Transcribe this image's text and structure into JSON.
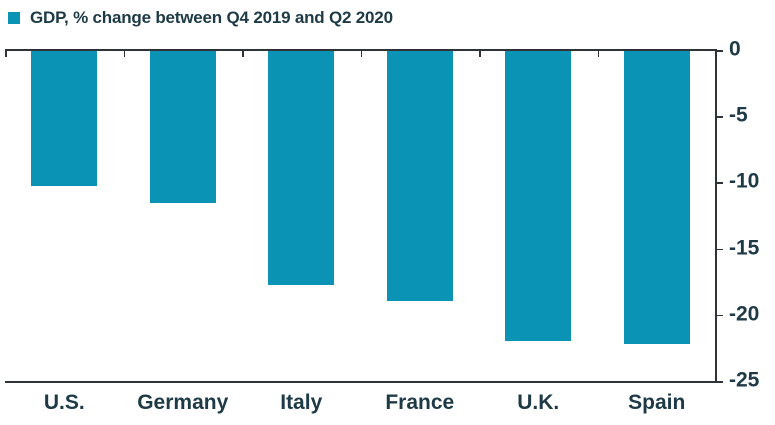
{
  "chart_data": {
    "type": "bar",
    "title": "GDP, % change between Q4 2019 and Q2 2020",
    "categories": [
      "U.S.",
      "Germany",
      "Italy",
      "France",
      "U.K.",
      "Spain"
    ],
    "values": [
      -10.2,
      -11.5,
      -17.7,
      -18.9,
      -21.9,
      -22.1
    ],
    "series": [
      {
        "name": "GDP, % change between Q4 2019 and Q2 2020",
        "values": [
          -10.2,
          -11.5,
          -17.7,
          -18.9,
          -21.9,
          -22.1
        ]
      }
    ],
    "xlabel": "",
    "ylabel": "",
    "ylim": [
      -25,
      0
    ],
    "yticks": [
      0,
      -5,
      -10,
      -15,
      -20,
      -25
    ],
    "ytick_labels": [
      "0",
      "-5",
      "-10",
      "-15",
      "-20",
      "-25"
    ],
    "yaxis_side": "right",
    "grid": false,
    "legend_position": "top-left",
    "legend_marker": "square",
    "bar_color": "#0b93b5",
    "legend_swatch_color": "#0b93b5",
    "text_color": "#1d3a46",
    "axis_color": "#2f3337",
    "background_color": "#ffffff"
  }
}
